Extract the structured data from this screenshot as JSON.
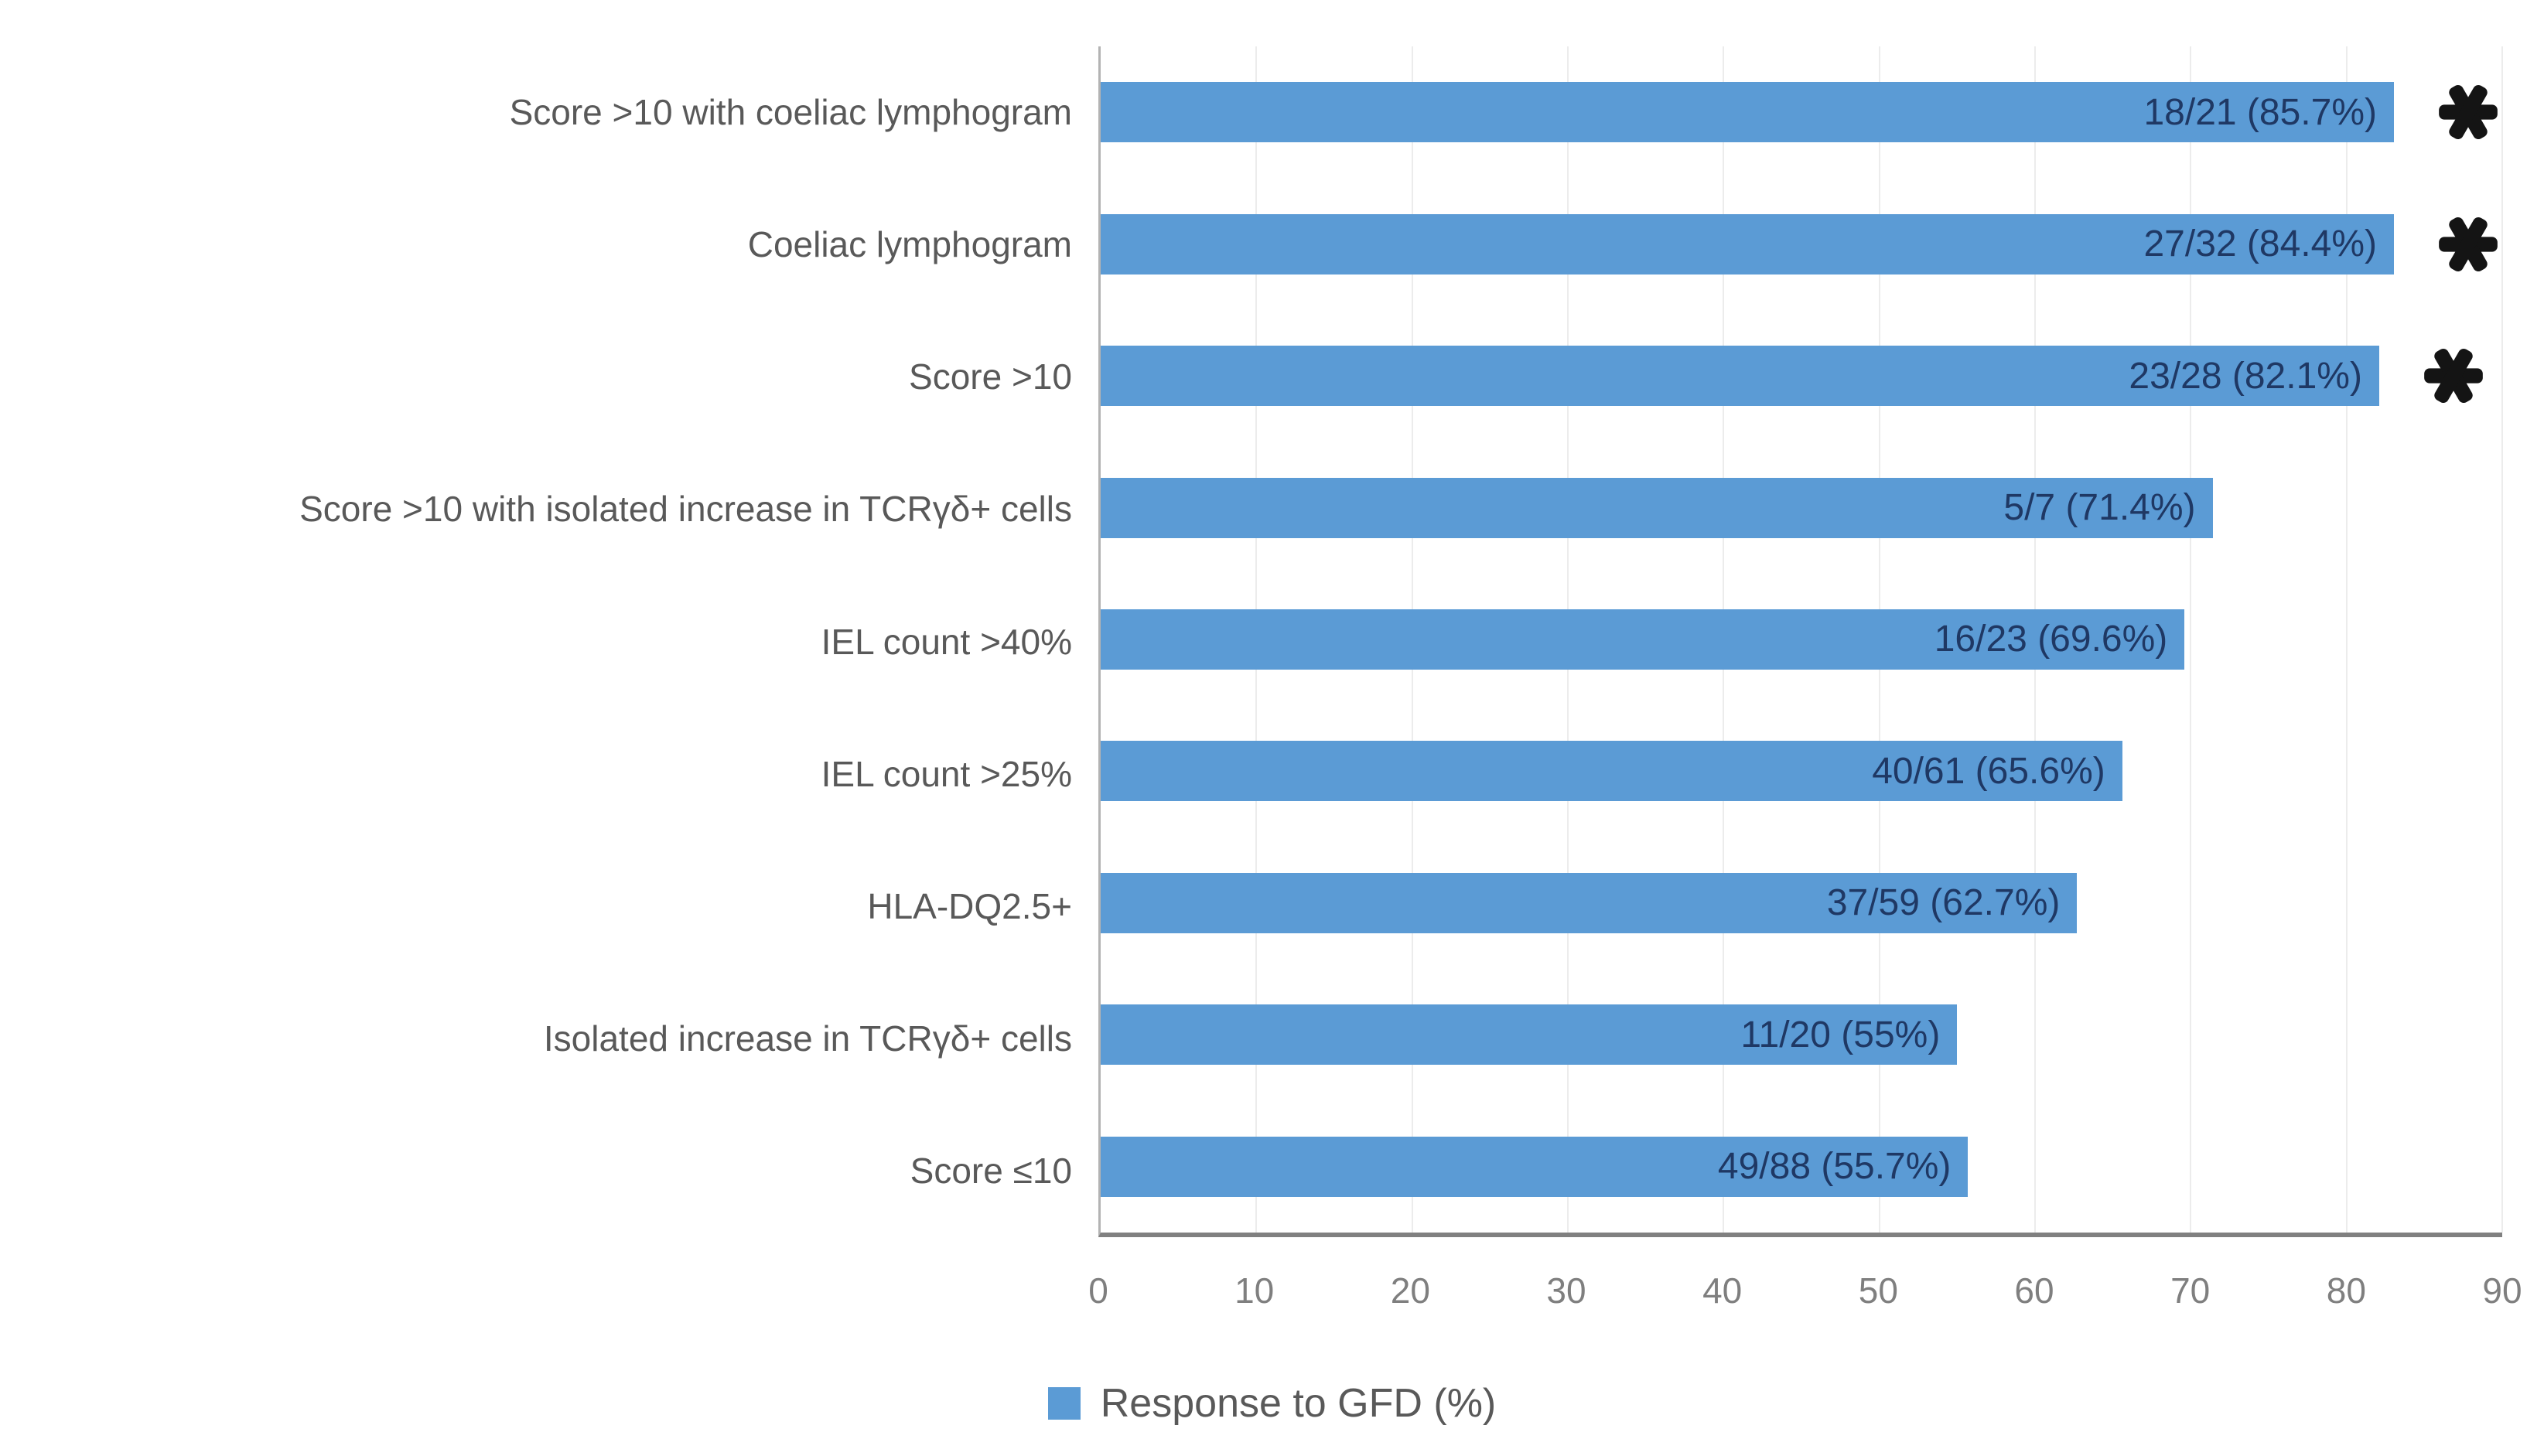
{
  "chart_data": {
    "type": "bar",
    "orientation": "horizontal",
    "x_axis": {
      "min": 0,
      "max": 90,
      "ticks": [
        0,
        10,
        20,
        30,
        40,
        50,
        60,
        70,
        80,
        90
      ]
    },
    "grid": "vertical-light",
    "legend": {
      "label": "Response to GFD (%)",
      "position": "bottom-center",
      "swatch_color": "#5B9BD5"
    },
    "series_name": "Response to GFD (%)",
    "significance_marker": "*",
    "categories": [
      "Score >10 with coeliac lymphogram",
      "Coeliac lymphogram",
      "Score >10",
      "Score >10 with isolated increase in TCRγδ+ cells",
      "IEL count >40%",
      "IEL count >25%",
      "HLA-DQ2.5+",
      "Isolated increase in TCRγδ+ cells",
      "Score ≤10"
    ],
    "bars": [
      {
        "category": "Score >10 with coeliac lymphogram",
        "label": "18/21 (85.7%)",
        "percent": 85.7,
        "significant": true
      },
      {
        "category": "Coeliac lymphogram",
        "label": "27/32 (84.4%)",
        "percent": 84.4,
        "significant": true
      },
      {
        "category": "Score >10",
        "label": "23/28 (82.1%)",
        "percent": 82.1,
        "significant": true
      },
      {
        "category": "Score >10 with isolated increase in TCRγδ+ cells",
        "label": "5/7 (71.4%)",
        "percent": 71.4,
        "significant": false
      },
      {
        "category": "IEL count >40%",
        "label": "16/23 (69.6%)",
        "percent": 69.6,
        "significant": false
      },
      {
        "category": "IEL count >25%",
        "label": "40/61 (65.6%)",
        "percent": 65.6,
        "significant": false
      },
      {
        "category": "HLA-DQ2.5+",
        "label": "37/59 (62.7%)",
        "percent": 62.7,
        "significant": false
      },
      {
        "category": "Isolated increase in TCRγδ+ cells",
        "label": "11/20 (55%)",
        "percent": 55,
        "significant": false
      },
      {
        "category": "Score ≤10",
        "label": "49/88 (55.7%)",
        "percent": 55.7,
        "significant": false
      }
    ]
  },
  "colors": {
    "bar": "#5B9BD5",
    "data_label": "#1F3864",
    "category_label": "#595959",
    "tick_label": "#7F7F7F",
    "axis_line": "#808080",
    "gridline": "#ECECEC",
    "marker": "#141414",
    "background": "#FFFFFF"
  }
}
